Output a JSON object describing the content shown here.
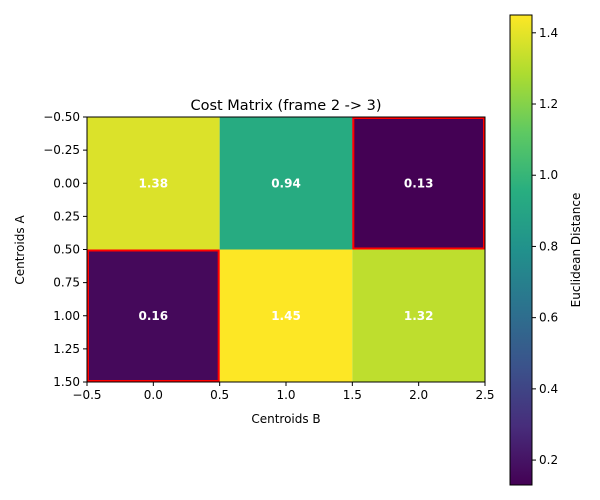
{
  "chart_data": {
    "type": "heatmap",
    "title": "Cost Matrix (frame 2 -> 3)",
    "xlabel": "Centroids B",
    "ylabel": "Centroids A",
    "matrix": [
      [
        1.38,
        0.94,
        0.13
      ],
      [
        0.16,
        1.45,
        1.32
      ]
    ],
    "cell_labels": [
      [
        "1.38",
        "0.94",
        "0.13"
      ],
      [
        "0.16",
        "1.45",
        "1.32"
      ]
    ],
    "highlighted_cells": [
      [
        0,
        2
      ],
      [
        1,
        0
      ]
    ],
    "highlight_color": "#ff0000",
    "xlim": [
      -0.5,
      2.5
    ],
    "ylim": [
      1.5,
      -0.5
    ],
    "x_ticks": [
      -0.5,
      0.0,
      0.5,
      1.0,
      1.5,
      2.0,
      2.5
    ],
    "x_tick_labels": [
      "−0.5",
      "0.0",
      "0.5",
      "1.0",
      "1.5",
      "2.0",
      "2.5"
    ],
    "y_ticks": [
      -0.5,
      -0.25,
      0.0,
      0.25,
      0.5,
      0.75,
      1.0,
      1.25,
      1.5
    ],
    "y_tick_labels": [
      "−0.50",
      "−0.25",
      "0.00",
      "0.25",
      "0.50",
      "0.75",
      "1.00",
      "1.25",
      "1.50"
    ],
    "colormap": "viridis",
    "colorbar": {
      "label": "Euclidean Distance",
      "range": [
        0.13,
        1.45
      ],
      "ticks": [
        0.2,
        0.4,
        0.6,
        0.8,
        1.0,
        1.2,
        1.4
      ],
      "tick_labels": [
        "0.2",
        "0.4",
        "0.6",
        "0.8",
        "1.0",
        "1.2",
        "1.4"
      ]
    },
    "grid": false
  }
}
